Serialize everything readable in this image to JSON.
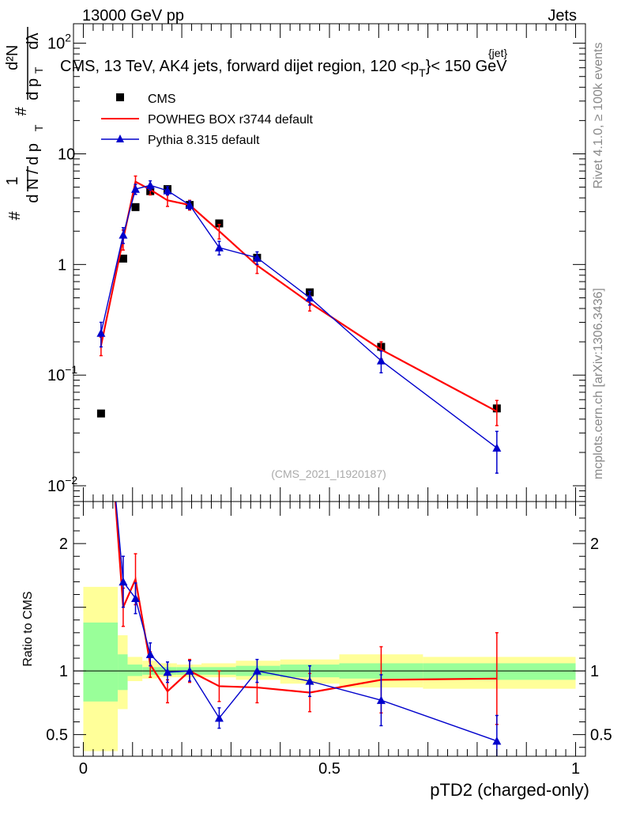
{
  "header": {
    "energy_label": "13000 GeV pp",
    "category_label": "Jets",
    "title_prefix": "CMS, 13 TeV, AK4 jets, forward dijet region, 120 <p",
    "title_sup": "{jet}",
    "title_sub": "T",
    "title_suffix": "}< 150 GeV",
    "analysis_id": "(CMS_2021_I1920187)"
  },
  "side_labels": {
    "rivet": "Rivet 4.1.0, ≥ 100k events",
    "mcplots": "mcplots.cern.ch [arXiv:1306.3436]"
  },
  "ylabel_main": {
    "hash1": "#",
    "one": "1",
    "dn": "d N / d p",
    "dn_sub": "T",
    "hash2": "#",
    "d2n": "d²N",
    "dpt": "d p",
    "dpt_sub": "T",
    "dl": "dλ"
  },
  "legend": [
    {
      "key": "cms",
      "label": "CMS",
      "color": "#000000",
      "marker": "square"
    },
    {
      "key": "powheg",
      "label": "POWHEG BOX r3744 default",
      "color": "#ff0000",
      "marker": "none"
    },
    {
      "key": "pythia",
      "label": "Pythia 8.315 default",
      "color": "#0000cc",
      "marker": "triangle"
    }
  ],
  "chart_data": [
    {
      "type": "line",
      "panel": "main",
      "title": "CMS, 13 TeV, AK4 jets, forward dijet region, 120 <p_T^{jet}< 150 GeV",
      "xlabel": "",
      "ylabel": "1/N dN/dp_T d2N/(dp_T dlambda)",
      "yscale": "log",
      "ylim": [
        0.0072,
        150
      ],
      "xlim": [
        -0.02,
        1.02
      ],
      "yticks": [
        {
          "value": 0.01,
          "base": "10",
          "exp": "−2"
        },
        {
          "value": 0.1,
          "base": "10",
          "exp": "−1"
        },
        {
          "value": 1,
          "base": "1",
          "exp": ""
        },
        {
          "value": 10,
          "base": "10",
          "exp": ""
        },
        {
          "value": 100,
          "base": "10",
          "exp": "2"
        }
      ],
      "series": [
        {
          "name": "CMS",
          "style": "markers-square",
          "x": [
            0.036,
            0.081,
            0.106,
            0.136,
            0.171,
            0.216,
            0.276,
            0.353,
            0.46,
            0.605,
            0.84
          ],
          "y": [
            0.045,
            1.13,
            3.3,
            4.6,
            4.8,
            3.45,
            2.35,
            1.15,
            0.56,
            0.18,
            0.05
          ],
          "err": [
            0,
            0,
            0,
            0,
            0,
            0,
            0,
            0,
            0,
            0,
            0
          ]
        },
        {
          "name": "POWHEG BOX r3744 default",
          "style": "line",
          "x": [
            0.036,
            0.081,
            0.106,
            0.136,
            0.171,
            0.216,
            0.276,
            0.353,
            0.46,
            0.605,
            0.84
          ],
          "y": [
            0.185,
            1.7,
            5.6,
            4.75,
            3.8,
            3.45,
            2.0,
            0.98,
            0.45,
            0.17,
            0.047
          ],
          "err": [
            0.035,
            0.35,
            0.7,
            0.5,
            0.45,
            0.35,
            0.3,
            0.15,
            0.07,
            0.03,
            0.012
          ]
        },
        {
          "name": "Pythia 8.315 default",
          "style": "line-triangles",
          "x": [
            0.036,
            0.081,
            0.106,
            0.136,
            0.171,
            0.216,
            0.276,
            0.353,
            0.46,
            0.605,
            0.84
          ],
          "y": [
            0.24,
            1.85,
            4.8,
            5.2,
            4.65,
            3.45,
            1.42,
            1.15,
            0.5,
            0.135,
            0.022
          ],
          "err": [
            0.06,
            0.3,
            0.5,
            0.5,
            0.4,
            0.3,
            0.2,
            0.15,
            0.07,
            0.03,
            0.009
          ]
        }
      ]
    },
    {
      "type": "line",
      "panel": "ratio",
      "xlabel": "pTD2 (charged-only)",
      "ylabel": "Ratio to CMS",
      "ylim": [
        0.33,
        2.33
      ],
      "xlim": [
        -0.02,
        1.02
      ],
      "reference": 1,
      "xticks": [
        {
          "value": 0,
          "label": "0"
        },
        {
          "value": 0.5,
          "label": "0.5"
        },
        {
          "value": 1,
          "label": "1"
        }
      ],
      "yticks": [
        {
          "value": 0.5,
          "label": "0.5"
        },
        {
          "value": 1,
          "label": "1"
        },
        {
          "value": 2,
          "label": "2"
        }
      ],
      "bands": {
        "edges": [
          0,
          0.07,
          0.09,
          0.12,
          0.15,
          0.19,
          0.24,
          0.31,
          0.4,
          0.52,
          0.69,
          1.0
        ],
        "outer_low": [
          0.37,
          0.7,
          0.92,
          0.94,
          0.95,
          0.95,
          0.95,
          0.93,
          0.9,
          0.87,
          0.86,
          0.89
        ],
        "outer_high": [
          1.66,
          1.28,
          1.11,
          1.08,
          1.06,
          1.05,
          1.06,
          1.08,
          1.09,
          1.13,
          1.11,
          1.1
        ],
        "inner_low": [
          0.76,
          0.85,
          0.96,
          0.97,
          0.97,
          0.97,
          0.97,
          0.96,
          0.95,
          0.94,
          0.93,
          0.94
        ],
        "inner_high": [
          1.38,
          1.13,
          1.05,
          1.03,
          1.03,
          1.03,
          1.03,
          1.04,
          1.05,
          1.06,
          1.06,
          1.05
        ]
      },
      "series": [
        {
          "name": "POWHEG BOX r3744 default",
          "x": [
            0.081,
            0.106,
            0.136,
            0.171,
            0.216,
            0.276,
            0.353,
            0.46,
            0.605,
            0.84
          ],
          "y": [
            1.5,
            1.72,
            1.05,
            0.84,
            1.0,
            0.88,
            0.87,
            0.83,
            0.93,
            0.94
          ],
          "err": [
            0.15,
            0.2,
            0.1,
            0.09,
            0.09,
            0.12,
            0.12,
            0.15,
            0.26,
            0.36
          ],
          "offscale_from": [
            0.06,
            2.6
          ]
        },
        {
          "name": "Pythia 8.315 default",
          "x": [
            0.081,
            0.106,
            0.136,
            0.171,
            0.216,
            0.276,
            0.353,
            0.46,
            0.605,
            0.84
          ],
          "y": [
            1.7,
            1.57,
            1.13,
            0.99,
            1.0,
            0.63,
            1.0,
            0.92,
            0.77,
            0.45
          ],
          "err": [
            0.2,
            0.12,
            0.09,
            0.08,
            0.08,
            0.08,
            0.09,
            0.12,
            0.2,
            0.2
          ],
          "offscale_from": [
            0.06,
            2.6
          ]
        }
      ]
    }
  ]
}
